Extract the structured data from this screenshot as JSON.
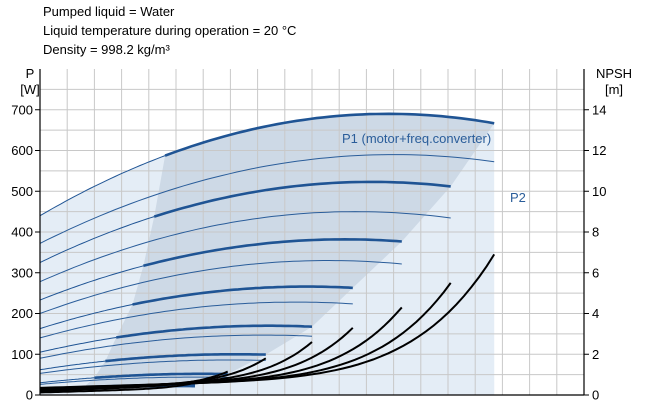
{
  "info": {
    "line1": "Pumped liquid = Water",
    "line2": "Liquid temperature during operation = 20 °C",
    "line3": "Density = 998.2 kg/m³"
  },
  "chart_data": {
    "type": "line",
    "title": "",
    "y_left_label": [
      "P",
      "[W]"
    ],
    "y_right_label": [
      "NPSH",
      "[m]"
    ],
    "y_left_ticks": [
      "0",
      "100",
      "200",
      "300",
      "400",
      "500",
      "600",
      "700"
    ],
    "y_right_ticks": [
      "0",
      "2",
      "4",
      "6",
      "8",
      "10",
      "12",
      "14"
    ],
    "ylim_left": [
      0,
      800
    ],
    "ylim_right": [
      0,
      16
    ],
    "xlim": [
      0,
      1
    ],
    "x_tick_labels_shown": false,
    "grid": true,
    "labels": {
      "p1": "P1 (motor+freq.converter)",
      "p2": "P2"
    },
    "colors": {
      "p1": "#1f5494",
      "p2": "#2a5d9a",
      "npsh": "#000000",
      "operating_area": "#cdd9e6",
      "extended_area": "#e4edf6",
      "grid": "#c8c8c8"
    },
    "p1_curves": [
      {
        "p0": 440,
        "pmax": 690,
        "xp": 0.64,
        "xend": 0.835,
        "x_thick_start": 0.23
      },
      {
        "p0": 325,
        "pmax": 523,
        "xp": 0.61,
        "xend": 0.755,
        "x_thick_start": 0.21
      },
      {
        "p0": 233,
        "pmax": 382,
        "xp": 0.56,
        "xend": 0.665,
        "x_thick_start": 0.19
      },
      {
        "p0": 163,
        "pmax": 266,
        "xp": 0.49,
        "xend": 0.575,
        "x_thick_start": 0.17
      },
      {
        "p0": 105,
        "pmax": 170,
        "xp": 0.42,
        "xend": 0.5,
        "x_thick_start": 0.14
      },
      {
        "p0": 62,
        "pmax": 100,
        "xp": 0.36,
        "xend": 0.415,
        "x_thick_start": 0.12
      },
      {
        "p0": 30,
        "pmax": 52,
        "xp": 0.3,
        "xend": 0.345,
        "x_thick_start": 0.1
      },
      {
        "p0": 13,
        "pmax": 24,
        "xp": 0.25,
        "xend": 0.285,
        "x_thick_start": 0.08
      }
    ],
    "p2_curves": [
      {
        "p0": 372,
        "pmax": 590,
        "xp": 0.65,
        "xend": 0.835
      },
      {
        "p0": 278,
        "pmax": 450,
        "xp": 0.58,
        "xend": 0.755
      },
      {
        "p0": 200,
        "pmax": 330,
        "xp": 0.53,
        "xend": 0.665
      },
      {
        "p0": 140,
        "pmax": 228,
        "xp": 0.47,
        "xend": 0.575
      },
      {
        "p0": 90,
        "pmax": 147,
        "xp": 0.41,
        "xend": 0.5
      },
      {
        "p0": 53,
        "pmax": 86,
        "xp": 0.35,
        "xend": 0.415
      },
      {
        "p0": 26,
        "pmax": 44,
        "xp": 0.29,
        "xend": 0.345
      },
      {
        "p0": 11,
        "pmax": 20,
        "xp": 0.24,
        "xend": 0.285
      }
    ],
    "npsh_curves": [
      {
        "x_end": 0.835,
        "y_end": 6.9,
        "y_flat": 1.0
      },
      {
        "x_end": 0.755,
        "y_end": 5.5,
        "y_flat": 0.95
      },
      {
        "x_end": 0.665,
        "y_end": 4.3,
        "y_flat": 0.9
      },
      {
        "x_end": 0.575,
        "y_end": 3.3,
        "y_flat": 0.85
      },
      {
        "x_end": 0.5,
        "y_end": 2.6,
        "y_flat": 0.8
      },
      {
        "x_end": 0.415,
        "y_end": 1.8,
        "y_flat": 0.7
      },
      {
        "x_end": 0.345,
        "y_end": 1.15,
        "y_flat": 0.55
      },
      {
        "x_end": 0.285,
        "y_end": 0.6,
        "y_flat": 0.35
      }
    ]
  }
}
